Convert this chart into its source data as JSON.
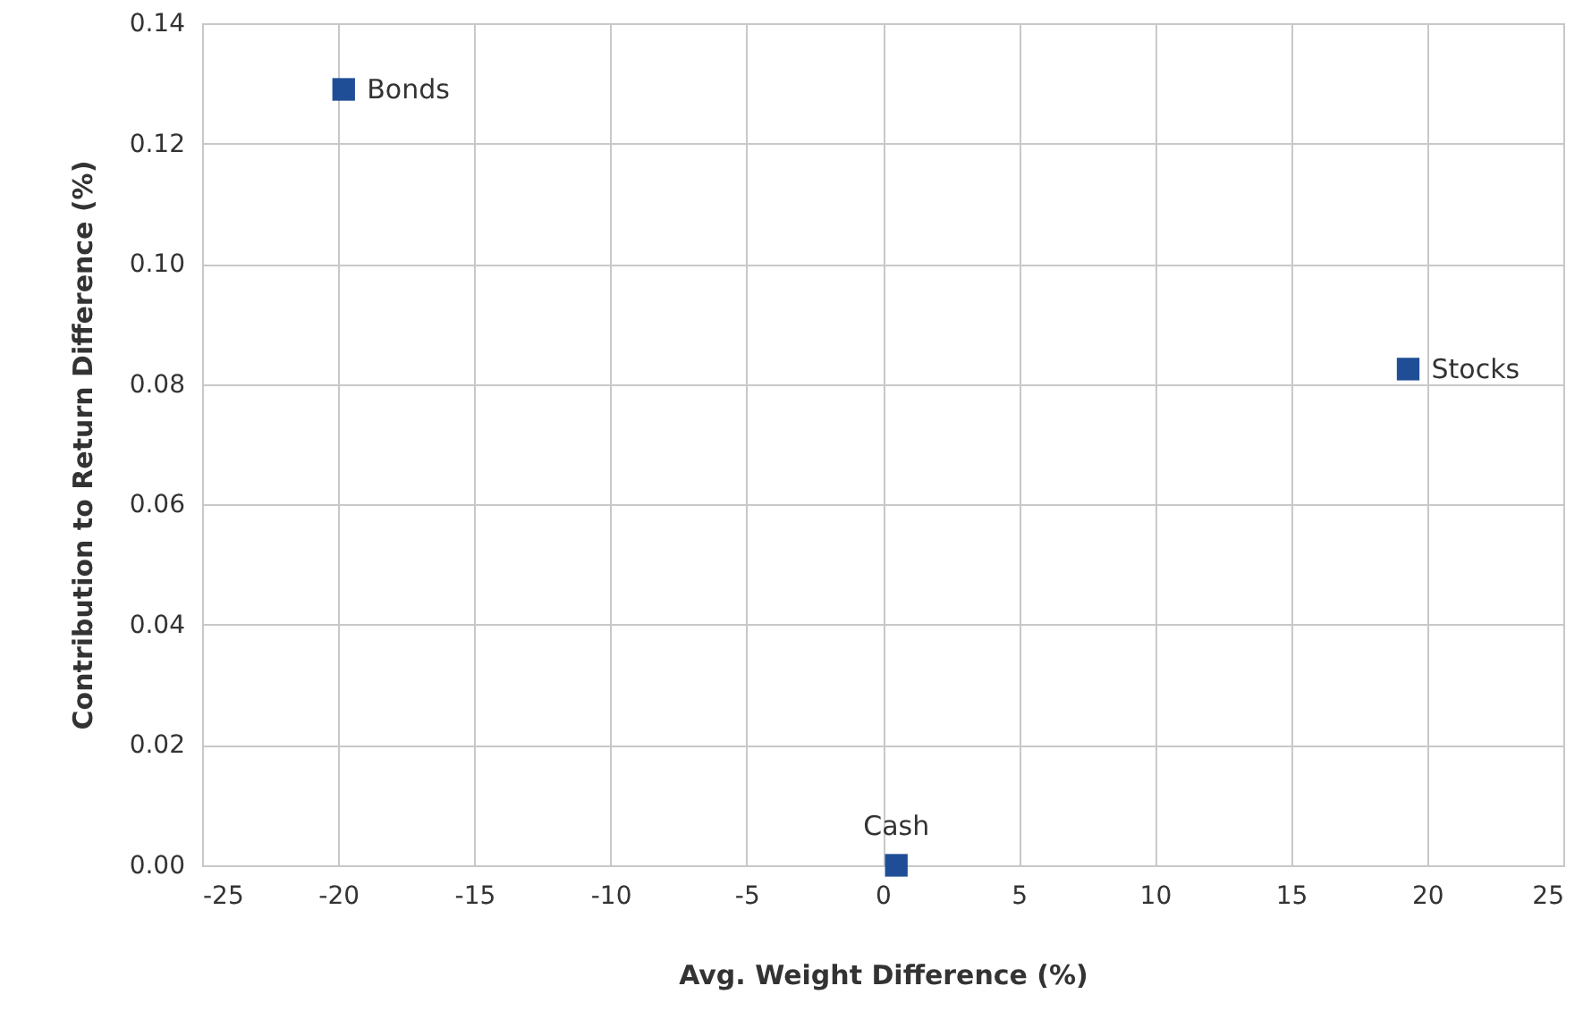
{
  "chart_data": {
    "type": "scatter",
    "xlabel": "Avg. Weight Difference (%)",
    "ylabel": "Contribution to Return Difference (%)",
    "series": [
      {
        "name": "Bonds",
        "color": "#1f4e96",
        "x": [
          -19.8
        ],
        "values": [
          0.129
        ]
      },
      {
        "name": "Stocks",
        "color": "#1f4e96",
        "x": [
          19.3
        ],
        "values": [
          0.0825
        ]
      },
      {
        "name": "Cash",
        "color": "#1f4e96",
        "x": [
          0.5
        ],
        "values": [
          0
        ]
      }
    ],
    "xlim": [
      -25,
      25
    ],
    "xticks": [
      -25,
      -20,
      -15,
      -10,
      -5,
      0,
      5,
      10,
      15,
      20,
      25
    ],
    "ylim": [
      0,
      0.14
    ],
    "yticks": [
      {
        "value": 0,
        "label": "0.00"
      },
      {
        "value": 0.02,
        "label": "0.02"
      },
      {
        "value": 0.04,
        "label": "0.04"
      },
      {
        "value": 0.06,
        "label": "0.06"
      },
      {
        "value": 0.08,
        "label": "0.08"
      },
      {
        "value": 0.1,
        "label": "0.10"
      },
      {
        "value": 0.12,
        "label": "0.12"
      },
      {
        "value": 0.14,
        "label": "0.14"
      }
    ],
    "grid": true,
    "marker": "square"
  }
}
